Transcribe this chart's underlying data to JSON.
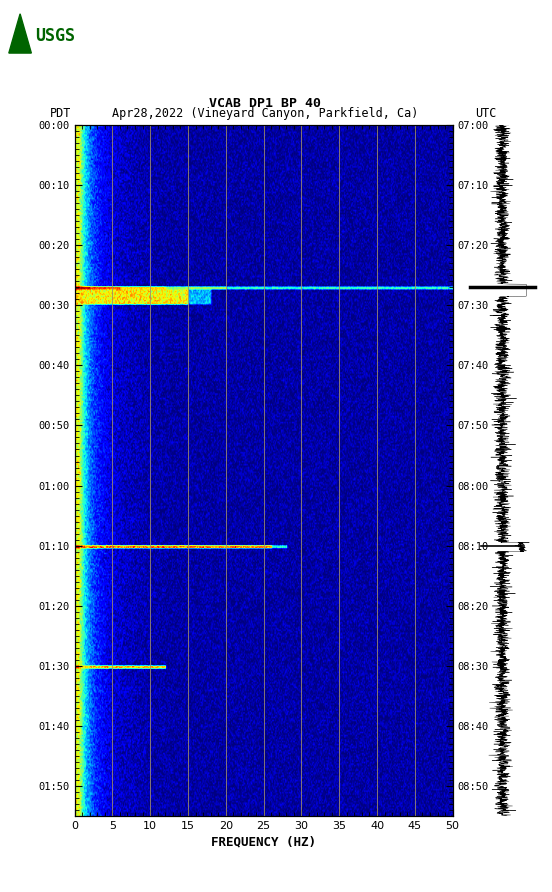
{
  "title_line1": "VCAB DP1 BP 40",
  "title_line2_pdt": "PDT",
  "title_line2_date": "Apr28,2022 (Vineyard Canyon, Parkfield, Ca)",
  "title_line2_utc": "UTC",
  "xlabel": "FREQUENCY (HZ)",
  "freq_min": 0,
  "freq_max": 50,
  "ytick_pdt": [
    "00:00",
    "00:10",
    "00:20",
    "00:30",
    "00:40",
    "00:50",
    "01:00",
    "01:10",
    "01:20",
    "01:30",
    "01:40",
    "01:50"
  ],
  "ytick_utc": [
    "07:00",
    "07:10",
    "07:20",
    "07:30",
    "07:40",
    "07:50",
    "08:00",
    "08:10",
    "08:20",
    "08:30",
    "08:40",
    "08:50"
  ],
  "xticks": [
    0,
    5,
    10,
    15,
    20,
    25,
    30,
    35,
    40,
    45,
    50
  ],
  "vline_freqs": [
    5,
    10,
    15,
    20,
    25,
    30,
    35,
    40,
    45
  ],
  "vline_color": "#9E8C6E",
  "fig_bg_color": "#ffffff",
  "fig_width": 5.52,
  "fig_height": 8.92,
  "total_minutes": 115,
  "n_time": 460,
  "n_freq": 500,
  "noise_seed": 42,
  "event1_time": 27,
  "event1_dur": 2,
  "event2_time": 70,
  "event2_dur": 1,
  "event3_time": 90,
  "event3_dur": 2,
  "usgs_color": "#006400"
}
